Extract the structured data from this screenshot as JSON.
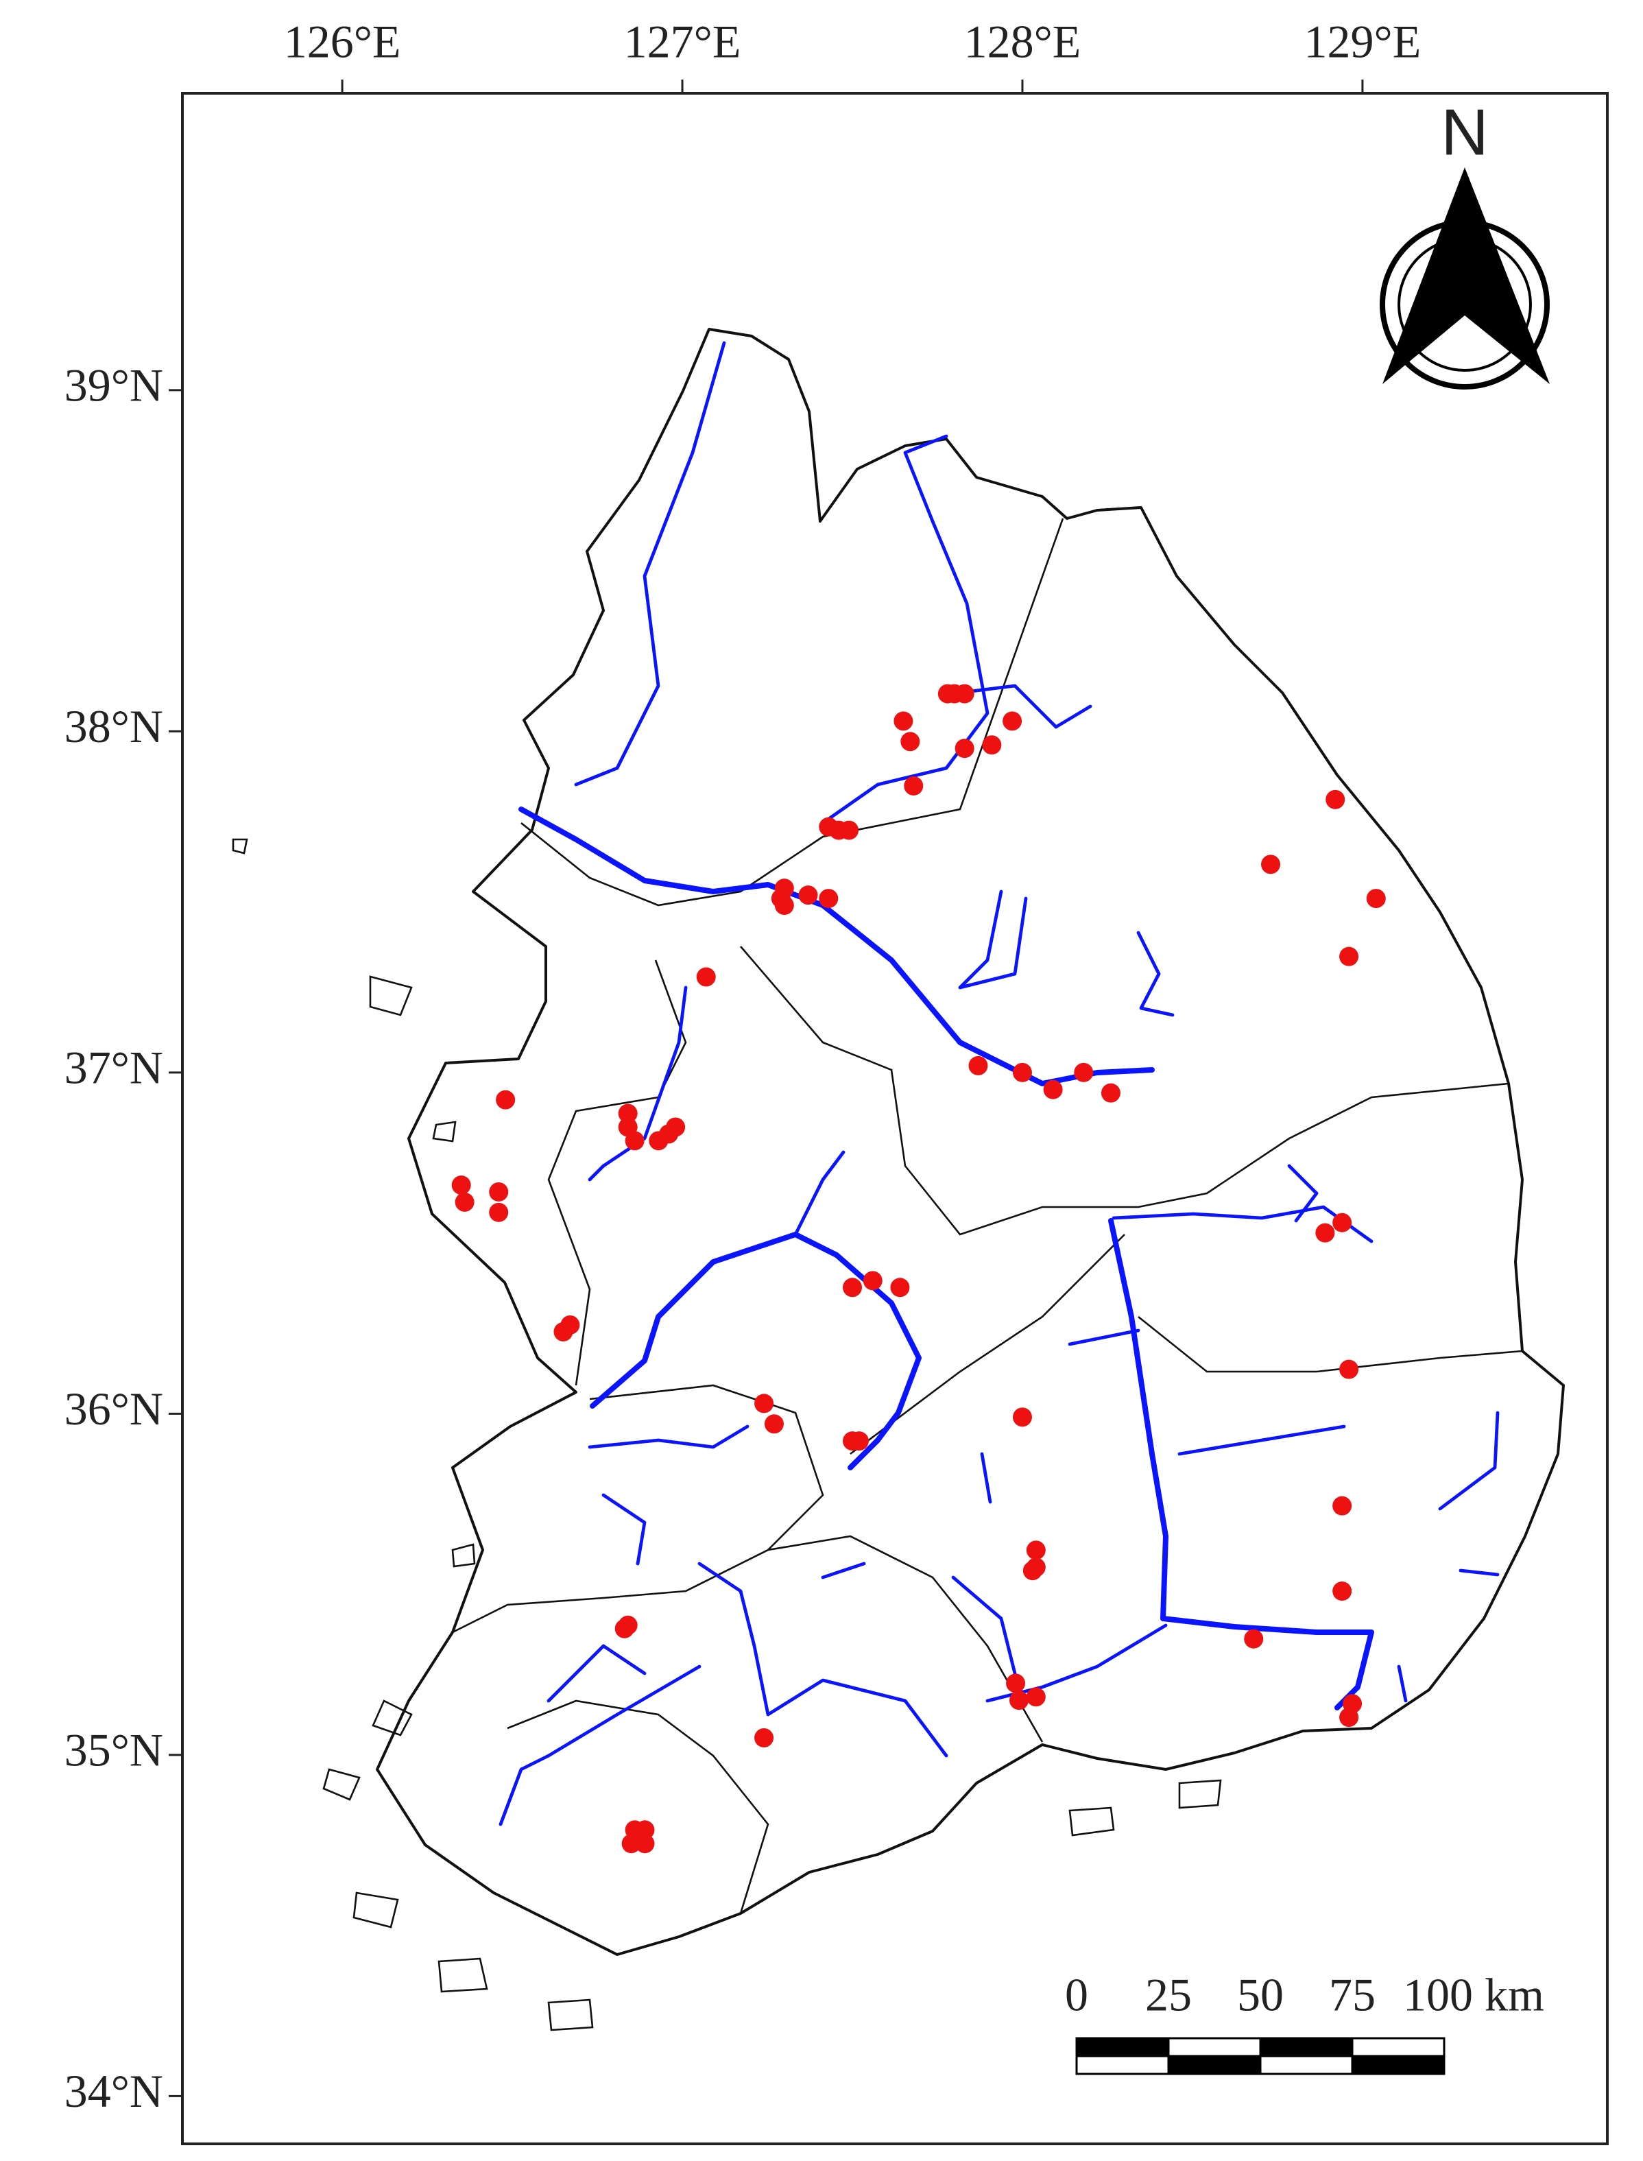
{
  "map": {
    "xlim": [
      125.53,
      129.72
    ],
    "ylim": [
      33.86,
      39.87
    ],
    "xticks": [
      {
        "value": 126,
        "label": "126°E"
      },
      {
        "value": 127,
        "label": "127°E"
      },
      {
        "value": 128,
        "label": "128°E"
      },
      {
        "value": 129,
        "label": "129°E"
      }
    ],
    "yticks": [
      {
        "value": 39,
        "label": "39°N"
      },
      {
        "value": 38,
        "label": "38°N"
      },
      {
        "value": 37,
        "label": "37°N"
      },
      {
        "value": 36,
        "label": "36°N"
      },
      {
        "value": 35,
        "label": "35°N"
      },
      {
        "value": 34,
        "label": "34°N"
      }
    ],
    "north_label": "N",
    "scale_ticks": [
      0,
      25,
      50,
      75,
      {
        "value": 100,
        "label": "100 km"
      }
    ],
    "point_color": "#ee1111",
    "points": [
      {
        "lon": 127.65,
        "lat": 38.03
      },
      {
        "lon": 127.67,
        "lat": 37.97
      },
      {
        "lon": 127.68,
        "lat": 37.84
      },
      {
        "lon": 127.78,
        "lat": 38.11
      },
      {
        "lon": 127.8,
        "lat": 38.11
      },
      {
        "lon": 127.83,
        "lat": 38.11
      },
      {
        "lon": 127.83,
        "lat": 37.95
      },
      {
        "lon": 127.91,
        "lat": 37.96
      },
      {
        "lon": 127.97,
        "lat": 38.03
      },
      {
        "lon": 127.43,
        "lat": 37.72
      },
      {
        "lon": 127.46,
        "lat": 37.71
      },
      {
        "lon": 127.49,
        "lat": 37.71
      },
      {
        "lon": 127.3,
        "lat": 37.54
      },
      {
        "lon": 127.29,
        "lat": 37.51
      },
      {
        "lon": 127.3,
        "lat": 37.49
      },
      {
        "lon": 127.37,
        "lat": 37.52
      },
      {
        "lon": 127.43,
        "lat": 37.51
      },
      {
        "lon": 127.07,
        "lat": 37.28
      },
      {
        "lon": 127.87,
        "lat": 37.02
      },
      {
        "lon": 128.0,
        "lat": 37.0
      },
      {
        "lon": 128.09,
        "lat": 36.95
      },
      {
        "lon": 128.18,
        "lat": 37.0
      },
      {
        "lon": 128.26,
        "lat": 36.94
      },
      {
        "lon": 128.92,
        "lat": 37.8
      },
      {
        "lon": 128.73,
        "lat": 37.61
      },
      {
        "lon": 129.04,
        "lat": 37.51
      },
      {
        "lon": 128.96,
        "lat": 37.34
      },
      {
        "lon": 126.48,
        "lat": 36.92
      },
      {
        "lon": 126.84,
        "lat": 36.88
      },
      {
        "lon": 126.84,
        "lat": 36.84
      },
      {
        "lon": 126.86,
        "lat": 36.8
      },
      {
        "lon": 126.93,
        "lat": 36.8
      },
      {
        "lon": 126.96,
        "lat": 36.82
      },
      {
        "lon": 126.98,
        "lat": 36.84
      },
      {
        "lon": 126.35,
        "lat": 36.67
      },
      {
        "lon": 126.36,
        "lat": 36.62
      },
      {
        "lon": 126.46,
        "lat": 36.65
      },
      {
        "lon": 126.46,
        "lat": 36.59
      },
      {
        "lon": 126.65,
        "lat": 36.24
      },
      {
        "lon": 126.67,
        "lat": 36.26
      },
      {
        "lon": 127.5,
        "lat": 36.37
      },
      {
        "lon": 127.56,
        "lat": 36.39
      },
      {
        "lon": 127.64,
        "lat": 36.37
      },
      {
        "lon": 128.89,
        "lat": 36.53
      },
      {
        "lon": 128.94,
        "lat": 36.56
      },
      {
        "lon": 128.96,
        "lat": 36.13
      },
      {
        "lon": 127.24,
        "lat": 36.03
      },
      {
        "lon": 127.27,
        "lat": 35.97
      },
      {
        "lon": 127.5,
        "lat": 35.92
      },
      {
        "lon": 127.52,
        "lat": 35.92
      },
      {
        "lon": 128.0,
        "lat": 35.99
      },
      {
        "lon": 128.04,
        "lat": 35.6
      },
      {
        "lon": 128.04,
        "lat": 35.55
      },
      {
        "lon": 128.03,
        "lat": 35.54
      },
      {
        "lon": 128.94,
        "lat": 35.73
      },
      {
        "lon": 128.94,
        "lat": 35.48
      },
      {
        "lon": 128.68,
        "lat": 35.34
      },
      {
        "lon": 126.84,
        "lat": 35.38
      },
      {
        "lon": 126.83,
        "lat": 35.37
      },
      {
        "lon": 127.98,
        "lat": 35.21
      },
      {
        "lon": 127.99,
        "lat": 35.16
      },
      {
        "lon": 128.04,
        "lat": 35.17
      },
      {
        "lon": 127.24,
        "lat": 35.05
      },
      {
        "lon": 128.97,
        "lat": 35.15
      },
      {
        "lon": 128.96,
        "lat": 35.11
      },
      {
        "lon": 126.86,
        "lat": 34.78
      },
      {
        "lon": 126.89,
        "lat": 34.78
      },
      {
        "lon": 126.85,
        "lat": 34.74
      },
      {
        "lon": 126.89,
        "lat": 34.74
      }
    ]
  }
}
